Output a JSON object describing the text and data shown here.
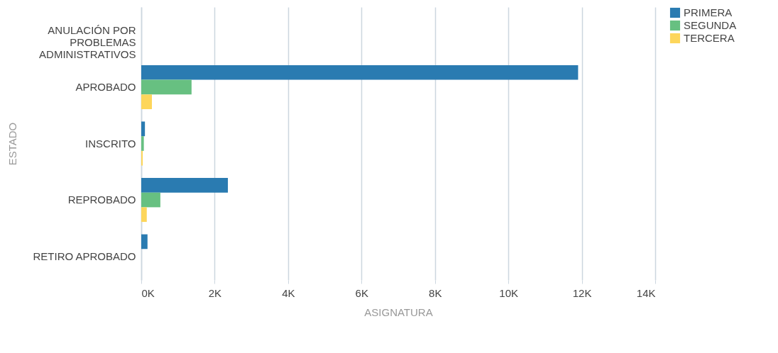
{
  "chart_data": {
    "type": "bar",
    "orientation": "horizontal",
    "xlabel": "ASIGNATURA",
    "ylabel": "ESTADO",
    "categories": [
      "ANULACIÓN POR PROBLEMAS ADMINISTRATIVOS",
      "APROBADO",
      "INSCRITO",
      "REPROBADO",
      "RETIRO APROBADO"
    ],
    "series": [
      {
        "name": "PRIMERA",
        "color": "#2a7bb1",
        "values": [
          null,
          11900,
          100,
          2360,
          170
        ]
      },
      {
        "name": "SEGUNDA",
        "color": "#67c081",
        "values": [
          null,
          1370,
          70,
          520,
          null
        ]
      },
      {
        "name": "TERCERA",
        "color": "#fdd65b",
        "values": [
          null,
          290,
          40,
          150,
          null
        ]
      }
    ],
    "xlim": [
      0,
      14000
    ],
    "xticks": [
      {
        "value": 0,
        "label": "0K"
      },
      {
        "value": 2000,
        "label": "2K"
      },
      {
        "value": 4000,
        "label": "4K"
      },
      {
        "value": 6000,
        "label": "6K"
      },
      {
        "value": 8000,
        "label": "8K"
      },
      {
        "value": 10000,
        "label": "10K"
      },
      {
        "value": 12000,
        "label": "12K"
      },
      {
        "value": 14000,
        "label": "14K"
      }
    ],
    "grid": "x",
    "legend": "right"
  }
}
